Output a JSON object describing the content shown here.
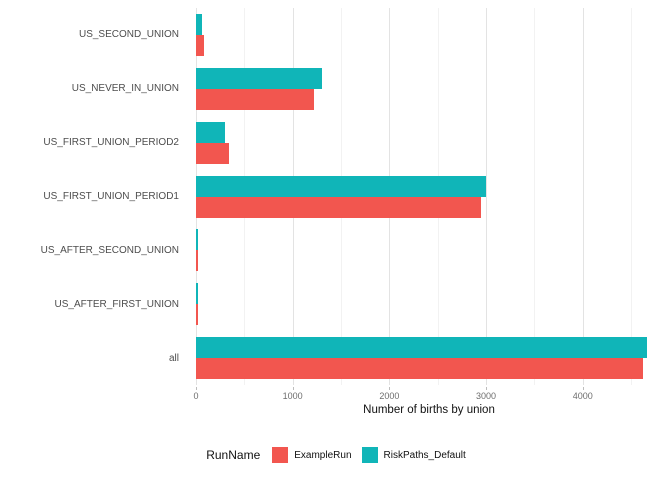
{
  "chart_data": {
    "type": "bar",
    "orientation": "horizontal",
    "xlabel": "Number of births by union",
    "categories_top_to_bottom": [
      "US_SECOND_UNION",
      "US_NEVER_IN_UNION",
      "US_FIRST_UNION_PERIOD2",
      "US_FIRST_UNION_PERIOD1",
      "US_AFTER_SECOND_UNION",
      "US_AFTER_FIRST_UNION",
      "all"
    ],
    "series": [
      {
        "name": "ExampleRun",
        "color": "#F2564F",
        "values": [
          85,
          1220,
          340,
          2950,
          12,
          10,
          4620
        ]
      },
      {
        "name": "RiskPaths_Default",
        "color": "#10B5B8",
        "values": [
          60,
          1300,
          300,
          3000,
          20,
          15,
          4670
        ]
      }
    ],
    "bar_order_in_group_top_to_bottom": [
      "RiskPaths_Default",
      "ExampleRun"
    ],
    "x_ticks": [
      0,
      1000,
      2000,
      3000,
      4000
    ],
    "x_minor_ticks": [
      500,
      1500,
      2500,
      3500,
      4500
    ],
    "xlim": [
      0,
      4820
    ],
    "grid": true,
    "legend": {
      "title": "RunName",
      "position": "bottom",
      "entries": [
        "ExampleRun",
        "RiskPaths_Default"
      ]
    }
  }
}
